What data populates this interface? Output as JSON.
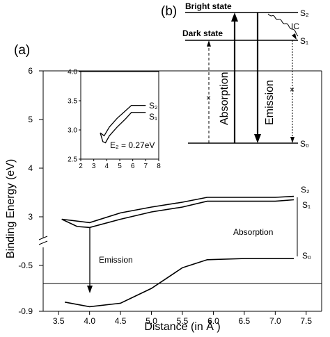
{
  "chart_data": [
    {
      "panel": "(a)",
      "type": "line",
      "xlabel": "Distance (in Å )",
      "ylabel": "Binding Energy (eV)",
      "xlim": [
        3.25,
        7.75
      ],
      "x_ticks": [
        "3.5",
        "4.0",
        "4.5",
        "5.0",
        "5.5",
        "6.0",
        "6.5",
        "7.0",
        "7.5"
      ],
      "y_axis_broken": true,
      "y_ticks_upper": [
        "3",
        "4",
        "5",
        "6"
      ],
      "y_ticks_lower": [
        "-0.5",
        "-0.9"
      ],
      "ylim_upper": [
        2.5,
        6.0
      ],
      "ylim_lower": [
        -0.9,
        -0.3
      ],
      "series": [
        {
          "name": "S₂",
          "segment": "upper",
          "x": [
            3.55,
            4.0,
            4.5,
            5.0,
            5.5,
            5.9,
            6.5,
            7.0,
            7.3
          ],
          "y": [
            2.95,
            2.88,
            3.08,
            3.2,
            3.3,
            3.4,
            3.4,
            3.4,
            3.42
          ]
        },
        {
          "name": "S₁",
          "segment": "upper",
          "x": [
            3.55,
            3.8,
            4.0,
            4.5,
            5.0,
            5.5,
            5.9,
            6.5,
            7.0,
            7.3
          ],
          "y": [
            2.95,
            2.8,
            2.78,
            2.95,
            3.1,
            3.2,
            3.32,
            3.32,
            3.32,
            3.35
          ]
        },
        {
          "name": "S₀",
          "segment": "lower",
          "x": [
            3.6,
            4.0,
            4.5,
            5.0,
            5.5,
            5.9,
            6.5,
            7.0,
            7.3
          ],
          "y": [
            -0.82,
            -0.86,
            -0.83,
            -0.7,
            -0.52,
            -0.45,
            -0.44,
            -0.44,
            -0.44
          ]
        }
      ],
      "annotations": [
        {
          "text": "Emission",
          "kind": "down-arrow",
          "x": 4.05,
          "from": 2.78,
          "to": -0.86
        },
        {
          "text": "Absorption",
          "kind": "vertical-line",
          "x": 7.3,
          "from": -0.44,
          "to": 3.35
        }
      ]
    },
    {
      "panel": "inset",
      "type": "line",
      "xlim": [
        2,
        8
      ],
      "ylim": [
        2.5,
        4.0
      ],
      "x_ticks": [
        "2",
        "3",
        "4",
        "5",
        "6",
        "7",
        "8"
      ],
      "y_ticks": [
        "2.5",
        "3.0",
        "3.5",
        "4.0"
      ],
      "annotation": "E₂ = 0.27eV",
      "series": [
        {
          "name": "S₂",
          "x": [
            3.5,
            3.8,
            4.2,
            4.8,
            5.4,
            5.9,
            6.5,
            7.0
          ],
          "y": [
            2.95,
            2.9,
            3.05,
            3.2,
            3.32,
            3.42,
            3.42,
            3.42
          ]
        },
        {
          "name": "S₁",
          "x": [
            3.5,
            3.7,
            3.9,
            4.2,
            4.8,
            5.4,
            5.9,
            6.5,
            7.0
          ],
          "y": [
            2.95,
            2.8,
            2.78,
            2.9,
            3.05,
            3.18,
            3.3,
            3.3,
            3.3
          ]
        }
      ]
    },
    {
      "panel": "(b)",
      "type": "diagram",
      "levels": [
        {
          "label": "S₂",
          "state": "Bright state"
        },
        {
          "label": "S₁",
          "state": "Dark state"
        },
        {
          "label": "S₀",
          "state": ""
        }
      ],
      "transitions": [
        "Absorption",
        "Emission",
        "IC"
      ]
    }
  ]
}
